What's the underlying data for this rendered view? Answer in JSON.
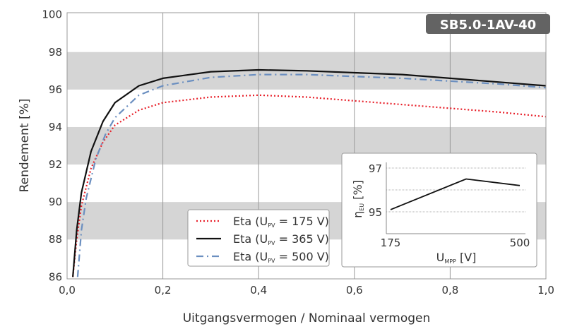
{
  "chart_data": {
    "type": "line",
    "title": "SB5.0-1AV-40",
    "xlabel": "Uitgangsvermogen / Nominaal vermogen",
    "ylabel": "Rendement [%]",
    "xlim": [
      0,
      1
    ],
    "ylim": [
      86,
      100
    ],
    "xticks": [
      "0,0",
      "0,2",
      "0,4",
      "0,6",
      "0,8",
      "1,0"
    ],
    "yticks": [
      "86",
      "88",
      "90",
      "92",
      "94",
      "96",
      "98",
      "100"
    ],
    "grid": true,
    "legend_placement": "bottom-center",
    "series": [
      {
        "name": "Eta (UPV = 175 V)",
        "label_main": "Eta (U",
        "label_sub": "PV",
        "label_end": " = 175 V)",
        "color": "#e8202a",
        "style": "dotted",
        "points": [
          [
            0.012,
            86
          ],
          [
            0.02,
            88
          ],
          [
            0.03,
            89.8
          ],
          [
            0.05,
            91.8
          ],
          [
            0.075,
            93.2
          ],
          [
            0.1,
            94.1
          ],
          [
            0.15,
            94.9
          ],
          [
            0.2,
            95.3
          ],
          [
            0.3,
            95.6
          ],
          [
            0.4,
            95.7
          ],
          [
            0.5,
            95.6
          ],
          [
            0.6,
            95.4
          ],
          [
            0.7,
            95.2
          ],
          [
            0.8,
            95.0
          ],
          [
            0.9,
            94.8
          ],
          [
            1.0,
            94.55
          ]
        ]
      },
      {
        "name": "Eta (UPV = 365 V)",
        "label_main": "Eta (U",
        "label_sub": "PV",
        "label_end": " = 365 V)",
        "color": "#111111",
        "style": "solid",
        "points": [
          [
            0.012,
            86
          ],
          [
            0.02,
            88.5
          ],
          [
            0.03,
            90.5
          ],
          [
            0.05,
            92.7
          ],
          [
            0.075,
            94.3
          ],
          [
            0.1,
            95.3
          ],
          [
            0.15,
            96.2
          ],
          [
            0.2,
            96.6
          ],
          [
            0.3,
            96.95
          ],
          [
            0.4,
            97.05
          ],
          [
            0.5,
            97.0
          ],
          [
            0.6,
            96.9
          ],
          [
            0.7,
            96.8
          ],
          [
            0.8,
            96.6
          ],
          [
            0.9,
            96.4
          ],
          [
            1.0,
            96.2
          ]
        ]
      },
      {
        "name": "Eta (UPV = 500 V)",
        "label_main": "Eta (U",
        "label_sub": "PV",
        "label_end": " = 500 V)",
        "color": "#6b8fc0",
        "style": "dashdot",
        "points": [
          [
            0.022,
            86
          ],
          [
            0.03,
            88.5
          ],
          [
            0.04,
            90.2
          ],
          [
            0.06,
            92.3
          ],
          [
            0.08,
            93.6
          ],
          [
            0.1,
            94.5
          ],
          [
            0.15,
            95.7
          ],
          [
            0.2,
            96.2
          ],
          [
            0.3,
            96.65
          ],
          [
            0.4,
            96.8
          ],
          [
            0.5,
            96.8
          ],
          [
            0.6,
            96.7
          ],
          [
            0.7,
            96.6
          ],
          [
            0.8,
            96.45
          ],
          [
            0.9,
            96.3
          ],
          [
            1.0,
            96.1
          ]
        ]
      }
    ],
    "inset": {
      "xlabel_main": "U",
      "xlabel_sub": "MPP",
      "xlabel_end": " [V]",
      "ylabel_main": "η",
      "ylabel_sub": "EU",
      "ylabel_end": " [%]",
      "xlim": [
        175,
        500
      ],
      "ylim": [
        94,
        97.3
      ],
      "xticks": [
        "175",
        "500"
      ],
      "yticks": [
        "95",
        "97"
      ],
      "points": [
        [
          175,
          95.1
        ],
        [
          365,
          96.5
        ],
        [
          500,
          96.2
        ]
      ]
    }
  }
}
